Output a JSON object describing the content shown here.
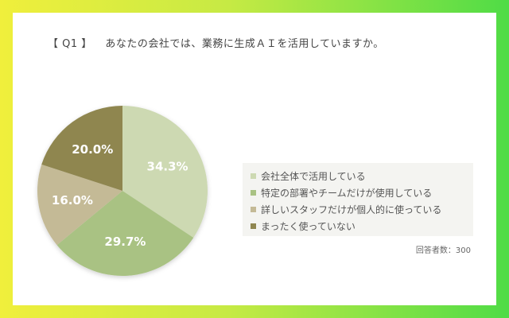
{
  "question": {
    "number": "【 Q1 】",
    "text": "あなたの会社では、業務に生成ＡＩを活用していますか。"
  },
  "respondents": "回答者数：300",
  "chart_data": {
    "type": "pie",
    "categories": [
      "会社全体で活用している",
      "特定の部署やチームだけが使用している",
      "詳しいスタッフだけが個人的に使っている",
      "まったく使っていない"
    ],
    "values": [
      34.3,
      29.7,
      16.0,
      20.0
    ],
    "labels": [
      "34.3%",
      "29.7%",
      "16.0%",
      "20.0%"
    ],
    "colors": [
      "#cdd9b2",
      "#a9c283",
      "#c4ba96",
      "#8f8650"
    ],
    "legend_position": "right"
  }
}
